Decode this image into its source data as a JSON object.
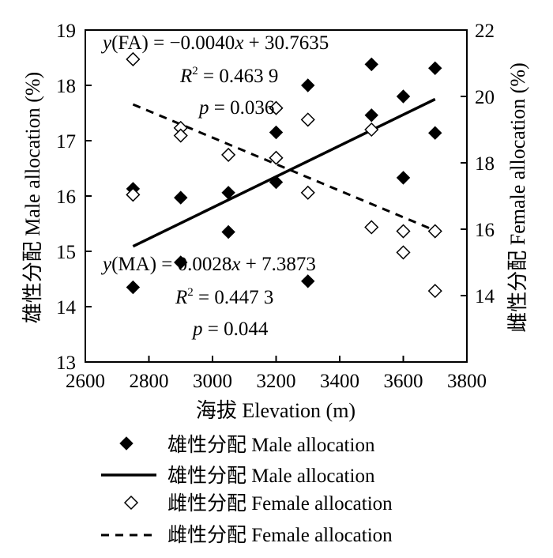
{
  "chart_data": {
    "type": "scatter",
    "xlabel": "海拔 Elevation (m)",
    "ylabel_left": "雄性分配 Male allocation (%)",
    "ylabel_right": "雌性分配 Female allocation (%)",
    "xlim": [
      2600,
      3800
    ],
    "ylim_left": [
      13,
      19
    ],
    "ylim_right": [
      12,
      22
    ],
    "x_ticks": [
      "2600",
      "2800",
      "3000",
      "3200",
      "3400",
      "3600",
      "3800"
    ],
    "y_left_ticks": [
      "13",
      "14",
      "15",
      "16",
      "17",
      "18",
      "19"
    ],
    "y_right_ticks": [
      "14",
      "16",
      "18",
      "20",
      "22"
    ],
    "grid": false,
    "legend_position": "bottom",
    "series": [
      {
        "name": "雄性分配  Male allocation",
        "kind": "points",
        "axis": "left",
        "marker": "filled-diamond",
        "points": [
          [
            2750,
            16.13
          ],
          [
            2750,
            14.35
          ],
          [
            2900,
            15.97
          ],
          [
            2900,
            14.8
          ],
          [
            3050,
            16.06
          ],
          [
            3050,
            15.35
          ],
          [
            3200,
            17.15
          ],
          [
            3200,
            16.25
          ],
          [
            3300,
            18.0
          ],
          [
            3300,
            14.46
          ],
          [
            3500,
            18.38
          ],
          [
            3500,
            17.46
          ],
          [
            3600,
            17.8
          ],
          [
            3600,
            16.33
          ],
          [
            3700,
            18.31
          ],
          [
            3700,
            17.14
          ]
        ]
      },
      {
        "name": "雄性分配  Male allocation",
        "kind": "line",
        "axis": "left",
        "style": "solid",
        "points": [
          [
            2750,
            15.09
          ],
          [
            3700,
            17.75
          ]
        ]
      },
      {
        "name": "雌性分配 Female allocation",
        "kind": "points",
        "axis": "right",
        "marker": "open-diamond",
        "points": [
          [
            2750,
            21.12
          ],
          [
            2750,
            17.04
          ],
          [
            2900,
            19.05
          ],
          [
            2900,
            18.82
          ],
          [
            3050,
            18.24
          ],
          [
            3200,
            19.65
          ],
          [
            3200,
            18.15
          ],
          [
            3300,
            19.3
          ],
          [
            3300,
            17.1
          ],
          [
            3500,
            19.0
          ],
          [
            3500,
            16.06
          ],
          [
            3600,
            15.94
          ],
          [
            3600,
            15.3
          ],
          [
            3700,
            15.94
          ],
          [
            3700,
            14.14
          ]
        ]
      },
      {
        "name": "雌性分配 Female allocation",
        "kind": "line",
        "axis": "right",
        "style": "dashed",
        "points": [
          [
            2750,
            19.76
          ],
          [
            3700,
            15.96
          ]
        ]
      }
    ],
    "annotations": {
      "fa_eq": {
        "y": "y",
        "lhs": "(FA) = −0.0040",
        "x": "x",
        "rhs": " + 30.7635"
      },
      "fa_r2": {
        "r": "R",
        "sup": "2",
        "val": " = 0.463 9"
      },
      "fa_p": {
        "p": "p",
        "val": " = 0.036"
      },
      "ma_eq": {
        "y": "y",
        "lhs": "(MA) = 0.0028",
        "x": "x",
        "rhs": " + 7.3873"
      },
      "ma_r2": {
        "r": "R",
        "sup": "2",
        "val": " = 0.447 3"
      },
      "ma_p": {
        "p": "p",
        "val": " = 0.044"
      }
    }
  }
}
